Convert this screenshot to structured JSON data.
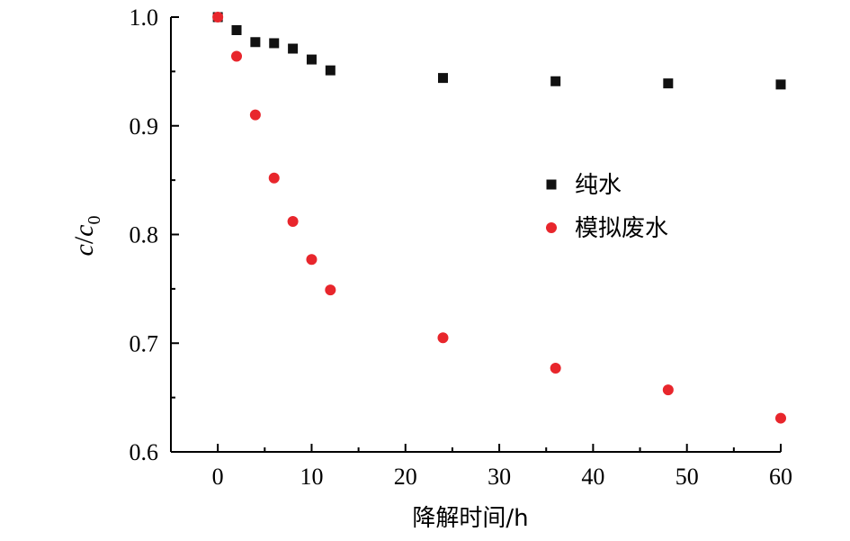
{
  "chart_data": {
    "type": "scatter",
    "xlabel": "降解时间/h",
    "ylabel": {
      "numerator": "c",
      "denominator": "c",
      "subscript": "0"
    },
    "xlim": [
      -5,
      60
    ],
    "ylim": [
      0.6,
      1.0
    ],
    "xticks": [
      0,
      10,
      20,
      30,
      40,
      50,
      60
    ],
    "yticks": [
      0.6,
      0.7,
      0.8,
      0.9,
      1.0
    ],
    "ytick_labels": [
      "0.6",
      "0.7",
      "0.8",
      "0.9",
      "1.0"
    ],
    "legend_position": "right-middle",
    "grid": false,
    "series": [
      {
        "name": "纯水",
        "marker": "square",
        "color": "#111111",
        "x": [
          0,
          2,
          4,
          6,
          8,
          10,
          12,
          24,
          36,
          48,
          60
        ],
        "y": [
          1.0,
          0.988,
          0.977,
          0.976,
          0.971,
          0.961,
          0.951,
          0.944,
          0.941,
          0.939,
          0.938
        ]
      },
      {
        "name": "模拟废水",
        "marker": "circle",
        "color": "#e8262c",
        "x": [
          0,
          2,
          4,
          6,
          8,
          10,
          12,
          24,
          36,
          48,
          60
        ],
        "y": [
          1.0,
          0.964,
          0.91,
          0.852,
          0.812,
          0.777,
          0.749,
          0.705,
          0.677,
          0.657,
          0.631
        ]
      }
    ]
  }
}
